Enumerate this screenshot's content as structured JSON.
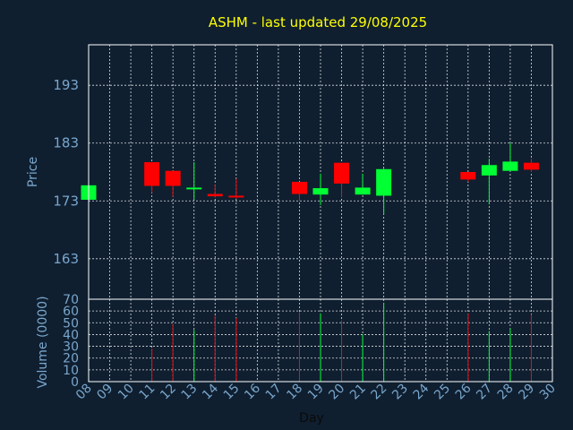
{
  "chart_data": {
    "type": "candlestick",
    "title": "ASHM - last updated 29/08/2025",
    "ylabel": "Price",
    "ylabel_volume": "Volume (0000)",
    "xlabel": "Day",
    "x_ticks": [
      "08",
      "09",
      "10",
      "11",
      "12",
      "13",
      "14",
      "15",
      "16",
      "17",
      "18",
      "19",
      "20",
      "21",
      "22",
      "23",
      "24",
      "25",
      "26",
      "27",
      "28",
      "29",
      "30"
    ],
    "price_ticks": [
      "193",
      "183",
      "173",
      "163"
    ],
    "volume_ticks": [
      "70",
      "60",
      "50",
      "40",
      "30",
      "20",
      "10",
      "0"
    ],
    "ylim_price": [
      156,
      200
    ],
    "ylim_volume": [
      0,
      70
    ],
    "colors": {
      "up": "#00ff33",
      "down": "#ff0000"
    },
    "candles": [
      {
        "day": "08",
        "open": 173.2,
        "high": 175.8,
        "low": 173.2,
        "close": 175.7,
        "volume": 0
      },
      {
        "day": "11",
        "open": 179.7,
        "high": 179.7,
        "low": 174.4,
        "close": 175.6,
        "volume": 28
      },
      {
        "day": "12",
        "open": 178.2,
        "high": 178.2,
        "low": 173.7,
        "close": 175.6,
        "volume": 49
      },
      {
        "day": "13",
        "open": 175.0,
        "high": 179.7,
        "low": 173.3,
        "close": 175.3,
        "volume": 44
      },
      {
        "day": "14",
        "open": 174.2,
        "high": 175.8,
        "low": 173.6,
        "close": 173.8,
        "volume": 56
      },
      {
        "day": "15",
        "open": 173.9,
        "high": 176.8,
        "low": 173.4,
        "close": 173.6,
        "volume": 54
      },
      {
        "day": "18",
        "open": 176.3,
        "high": 176.3,
        "low": 173.0,
        "close": 174.2,
        "volume": 59
      },
      {
        "day": "19",
        "open": 174.1,
        "high": 177.7,
        "low": 172.3,
        "close": 175.2,
        "volume": 58
      },
      {
        "day": "20",
        "open": 179.6,
        "high": 179.6,
        "low": 173.6,
        "close": 176.0,
        "volume": 52
      },
      {
        "day": "21",
        "open": 174.1,
        "high": 177.7,
        "low": 174.1,
        "close": 175.3,
        "volume": 40
      },
      {
        "day": "22",
        "open": 173.9,
        "high": 178.6,
        "low": 170.7,
        "close": 178.5,
        "volume": 67
      },
      {
        "day": "26",
        "open": 178.0,
        "high": 178.0,
        "low": 176.3,
        "close": 176.7,
        "volume": 58
      },
      {
        "day": "27",
        "open": 177.4,
        "high": 180.3,
        "low": 172.4,
        "close": 179.2,
        "volume": 43
      },
      {
        "day": "28",
        "open": 178.2,
        "high": 183.0,
        "low": 178.2,
        "close": 179.8,
        "volume": 45
      },
      {
        "day": "29",
        "open": 179.6,
        "high": 180.3,
        "low": 178.0,
        "close": 178.4,
        "volume": 57
      }
    ]
  }
}
